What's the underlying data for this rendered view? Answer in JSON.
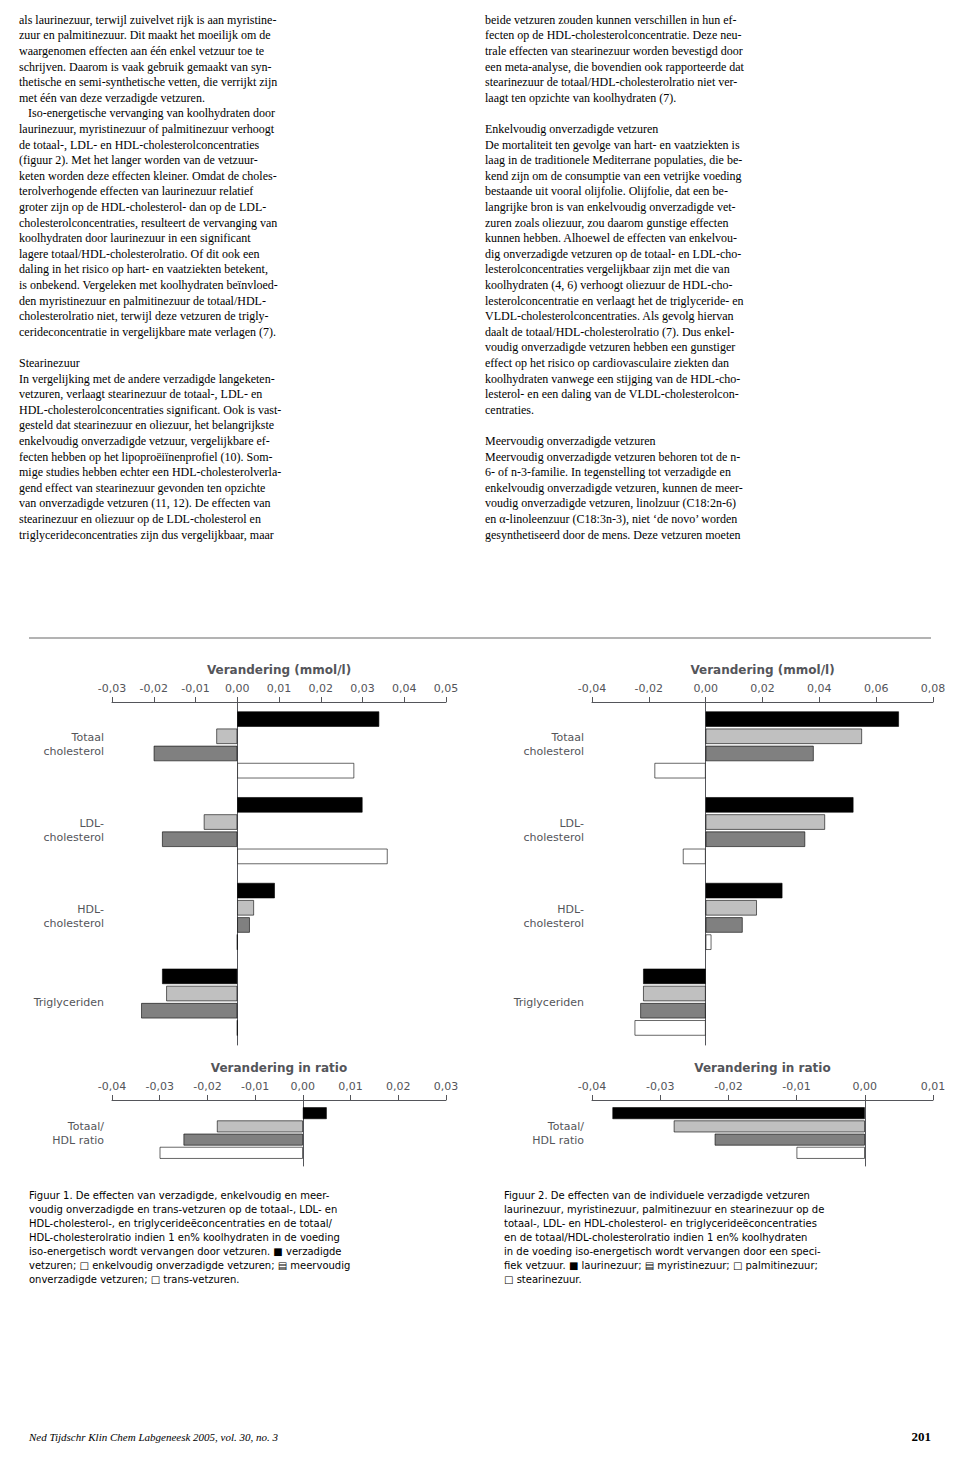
{
  "chart_data": [
    {
      "type": "bar",
      "orientation": "horizontal",
      "grid": false,
      "xlabel": "Verandering (mmol/l)",
      "xlim": [
        -0.03,
        0.05
      ],
      "xticks": [
        {
          "value": -0.03,
          "label": "-0,03"
        },
        {
          "value": -0.02,
          "label": "-0,02"
        },
        {
          "value": -0.01,
          "label": "-0,01"
        },
        {
          "value": 0.0,
          "label": "0,00"
        },
        {
          "value": 0.01,
          "label": "0,01"
        },
        {
          "value": 0.02,
          "label": "0,02"
        },
        {
          "value": 0.03,
          "label": "0,03"
        },
        {
          "value": 0.04,
          "label": "0,04"
        },
        {
          "value": 0.05,
          "label": "0,05"
        }
      ],
      "categories": [
        "Totaal\ncholesterol",
        "LDL-\ncholesterol",
        "HDL-\ncholesterol",
        "Triglyceriden"
      ],
      "series": [
        {
          "color": "#000000",
          "values": [
            0.034,
            0.03,
            0.009,
            -0.018
          ]
        },
        {
          "color": "#c0c0c0",
          "values": [
            -0.005,
            -0.008,
            0.004,
            -0.017
          ]
        },
        {
          "color": "#808080",
          "values": [
            -0.02,
            -0.018,
            0.003,
            -0.023
          ]
        },
        {
          "color": "#ffffff",
          "values": [
            0.028,
            0.036,
            0.0,
            0.0
          ]
        }
      ]
    },
    {
      "type": "bar",
      "orientation": "horizontal",
      "grid": false,
      "xlabel": "Verandering in ratio",
      "xlim": [
        -0.04,
        0.03
      ],
      "xticks": [
        {
          "value": -0.04,
          "label": "-0,04"
        },
        {
          "value": -0.03,
          "label": "-0,03"
        },
        {
          "value": -0.02,
          "label": "-0,02"
        },
        {
          "value": -0.01,
          "label": "-0,01"
        },
        {
          "value": 0.0,
          "label": "0,00"
        },
        {
          "value": 0.01,
          "label": "0,01"
        },
        {
          "value": 0.02,
          "label": "0,02"
        },
        {
          "value": 0.03,
          "label": "0,03"
        }
      ],
      "categories": [
        "Totaal/\nHDL ratio"
      ],
      "series": [
        {
          "color": "#000000",
          "values": [
            0.005
          ]
        },
        {
          "color": "#c0c0c0",
          "values": [
            -0.018
          ]
        },
        {
          "color": "#808080",
          "values": [
            -0.025
          ]
        },
        {
          "color": "#ffffff",
          "values": [
            -0.03
          ]
        }
      ]
    },
    {
      "type": "bar",
      "orientation": "horizontal",
      "grid": false,
      "xlabel": "Verandering (mmol/l)",
      "xlim": [
        -0.04,
        0.08
      ],
      "xticks": [
        {
          "value": -0.04,
          "label": "-0,04"
        },
        {
          "value": -0.02,
          "label": "-0,02"
        },
        {
          "value": 0.0,
          "label": "0,00"
        },
        {
          "value": 0.02,
          "label": "0,02"
        },
        {
          "value": 0.04,
          "label": "0,04"
        },
        {
          "value": 0.06,
          "label": "0,06"
        },
        {
          "value": 0.08,
          "label": "0,08"
        }
      ],
      "categories": [
        "Totaal\ncholesterol",
        "LDL-\ncholesterol",
        "HDL-\ncholesterol",
        "Triglyceriden"
      ],
      "series": [
        {
          "color": "#000000",
          "values": [
            0.068,
            0.052,
            0.027,
            -0.022
          ]
        },
        {
          "color": "#c0c0c0",
          "values": [
            0.055,
            0.042,
            0.018,
            -0.022
          ]
        },
        {
          "color": "#808080",
          "values": [
            0.038,
            0.035,
            0.013,
            -0.023
          ]
        },
        {
          "color": "#ffffff",
          "values": [
            -0.018,
            -0.008,
            0.002,
            -0.025
          ]
        }
      ]
    },
    {
      "type": "bar",
      "orientation": "horizontal",
      "grid": false,
      "xlabel": "Verandering in ratio",
      "xlim": [
        -0.04,
        0.01
      ],
      "xticks": [
        {
          "value": -0.04,
          "label": "-0,04"
        },
        {
          "value": -0.03,
          "label": "-0,03"
        },
        {
          "value": -0.02,
          "label": "-0,02"
        },
        {
          "value": -0.01,
          "label": "-0,01"
        },
        {
          "value": 0.0,
          "label": "0,00"
        },
        {
          "value": 0.01,
          "label": "0,01"
        }
      ],
      "categories": [
        "Totaal/\nHDL ratio"
      ],
      "series": [
        {
          "color": "#000000",
          "values": [
            -0.037
          ]
        },
        {
          "color": "#c0c0c0",
          "values": [
            -0.028
          ]
        },
        {
          "color": "#808080",
          "values": [
            -0.022
          ]
        },
        {
          "color": "#ffffff",
          "values": [
            -0.01
          ]
        }
      ]
    }
  ],
  "annotations": [
    "als laurinezuur, terwijl zuivelvet rijk is aan myristine-\nzuur en palmitinezuur. Dit maakt het moeilijk om de\nwaargenomen effecten aan één enkel vetzuur toe te\nschrijven. Daarom is vaak gebruik gemaakt van syn-\nthetische en semi-synthetische vetten, die verrijkt zijn\nmet één van deze verzadigde vetzuren.\n   Iso-energetische vervanging van koolhydraten door\nlaurinezuur, myristinezuur of palmitinezuur verhoogt\nde totaal-, LDL- en HDL-cholesterolconcentraties\n(figuur 2). Met het langer worden van de vetzuur-\nketen worden deze effecten kleiner. Omdat de choles-\nterolverhogende effecten van laurinezuur relatief\ngroter zijn op de HDL-cholesterol- dan op de LDL-\ncholesterolconcentraties, resulteert de vervanging van\nkoolhydraten door laurinezuur in een significant\nlagere totaal/HDL-cholesterolratio. Of dit ook een\ndaling in het risico op hart- en vaatziekten betekent,\nis onbekend. Vergeleken met koolhydraten beïnvloed-\nden myristinezuur en palmitinezuur de totaal/HDL-\ncholesterolratio niet, terwijl deze vetzuren de trigly-\ncerideconcentratie in vergelijkbare mate verlagen (7).\n\nStearinezuur\nIn vergelijking met de andere verzadigde langeketen-\nvetzuren, verlaagt stearinezuur de totaal-, LDL- en\nHDL-cholesterolconcentraties significant. Ook is vast-\ngesteld dat stearinezuur en oliezuur, het belangrijkste\nenkelvoudig onverzadigde vetzuur, vergelijkbare ef-\nfecten hebben op het lipoproëiïnenprofiel (10). Som-\nmige studies hebben echter een HDL-cholesterolverla-\ngend effect van stearinezuur gevonden ten opzichte\nvan onverzadigde vetzuren (11, 12). De effecten van\nstearinezuur en oliezuur op de LDL-cholesterol en\ntriglycerideconcentraties zijn dus vergelijkbaar, maar",
    "beide vetzuren zouden kunnen verschillen in hun ef-\nfecten op de HDL-cholesterolconcentratie. Deze neu-\ntrale effecten van stearinezuur worden bevestigd door\neen meta-analyse, die bovendien ook rapporteerde dat\nstearinezuur de totaal/HDL-cholesterolratio niet ver-\nlaagt ten opzichte van koolhydraten (7).\n\nEnkelvoudig onverzadigde vetzuren\nDe mortaliteit ten gevolge van hart- en vaatziekten is\nlaag in de traditionele Mediterrane populaties, die be-\nkend zijn om de consumptie van een vetrijke voeding\nbestaande uit vooral olijfolie. Olijfolie, dat een be-\nlangrijke bron is van enkelvoudig onverzadigde vet-\nzuren zoals oliezuur, zou daarom gunstige effecten\nkunnen hebben. Alhoewel de effecten van enkelvou-\ndig onverzadigde vetzuren op de totaal- en LDL-cho-\nlesterolconcentraties vergelijkbaar zijn met die van\nkoolhydraten (4, 6) verhoogt oliezuur de HDL-cho-\nlesterolconcentratie en verlaagt het de triglyceride- en\nVLDL-cholesterolconcentraties. Als gevolg hiervan\ndaalt de totaal/HDL-cholesterolratio (7). Dus enkel-\nvoudig onverzadigde vetzuren hebben een gunstiger\neffect op het risico op cardiovasculaire ziekten dan\nkoolhydraten vanwege een stijging van de HDL-cho-\nlesterol- en een daling van de VLDL-cholesterolcon-\ncentraties.\n\nMeervoudig onverzadigde vetzuren\nMeervoudig onverzadigde vetzuren behoren tot de n-\n6- of n-3-familie. In tegenstelling tot verzadigde en\nenkelvoudig onverzadigde vetzuren, kunnen de meer-\nvoudig onverzadigde vetzuren, linolzuur (C18:2n-6)\nen α-linoleenzuur (C18:3n-3), niet ‘de novo’ worden\ngesynthetiseerd door de mens. Deze vetzuren moeten",
    "Figuur 1. De effecten van verzadigde, enkelvoudig en meer-\nvoudig onverzadigde en trans-vetzuren op de totaal-, LDL- en\nHDL-cholesterol-, en triglycerideëconcentraties en de totaal/\nHDL-cholesterolratio indien 1 en% koolhydraten in de voeding\niso-energetisch wordt vervangen door vetzuren. ■ verzadigde\nvetzuren; □ enkelvoudig onverzadigde vetzuren; ▤ meervoudig\nonverzadigde vetzuren; □ trans-vetzuren.",
    "Figuur 2. De effecten van de individuele verzadigde vetzuren\nlaurinezuur, myristinezuur, palmitinezuur en stearinezuur op de\ntotaal-, LDL- en HDL-cholesterol- en triglycerideëconcentraties\nen de totaal/HDL-cholesterolratio indien 1 en% koolhydraten\nin de voeding iso-energetisch wordt vervangen door een speci-\nfiek vetzuur. ■ laurinezuur; ▤ myristinezuur; □ palmitinezuur;\n□ stearinezuur.",
    "Ned Tijdschr Klin Chem Labgeneesk 2005, vol. 30, no. 3",
    "201"
  ]
}
